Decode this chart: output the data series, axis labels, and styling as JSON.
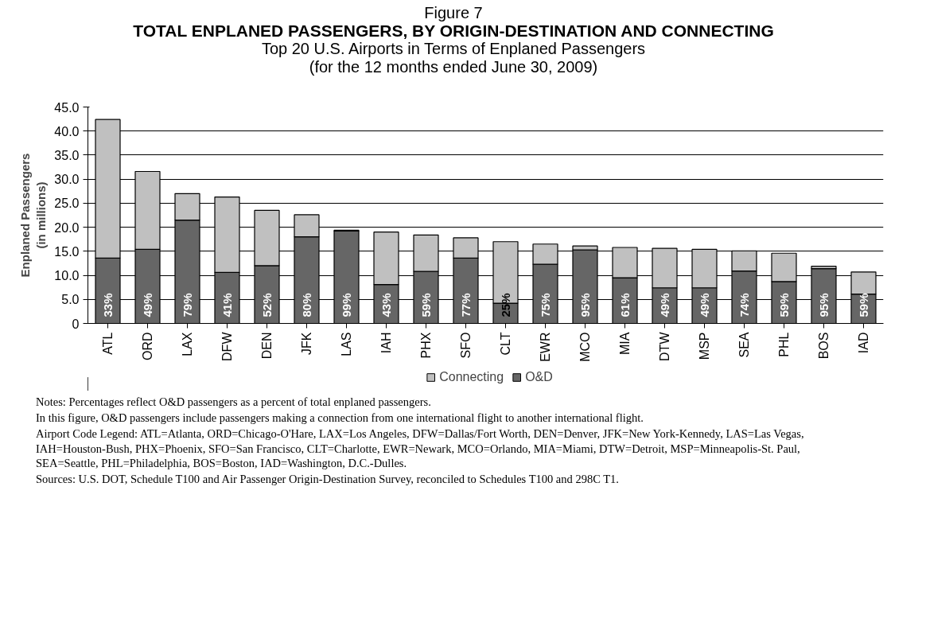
{
  "chart_data": {
    "type": "bar",
    "stacked": true,
    "title": "Figure 7\nTOTAL ENPLANED PASSENGERS, BY ORIGIN-DESTINATION AND CONNECTING",
    "subtitle": "Top 20 U.S. Airports in Terms of Enplaned Passengers\n(for the 12 months ended June 30, 2009)",
    "ylabel": "Enplaned Passengers\n(in millions)",
    "categories": [
      "ATL",
      "ORD",
      "LAX",
      "DFW",
      "DEN",
      "JFK",
      "LAS",
      "IAH",
      "PHX",
      "SFO",
      "CLT",
      "EWR",
      "MCO",
      "MIA",
      "DTW",
      "MSP",
      "SEA",
      "PHL",
      "BOS",
      "IAD"
    ],
    "series": [
      {
        "name": "O&D",
        "color": "#666666",
        "values": [
          13.6,
          15.4,
          21.5,
          10.6,
          12.0,
          18.0,
          19.2,
          8.1,
          10.8,
          13.6,
          4.2,
          12.3,
          15.3,
          9.5,
          7.4,
          7.4,
          10.9,
          8.7,
          11.4,
          6.1
        ]
      },
      {
        "name": "Connecting",
        "color": "#c0c0c0",
        "values": [
          28.8,
          16.2,
          5.5,
          15.7,
          11.5,
          4.6,
          0.2,
          10.9,
          7.6,
          4.2,
          12.8,
          4.2,
          0.8,
          6.3,
          8.2,
          8.0,
          4.2,
          5.9,
          0.5,
          4.6
        ]
      }
    ],
    "ylim": [
      0,
      45
    ],
    "yticks": [
      {
        "value": 0,
        "label": "0"
      },
      {
        "value": 5,
        "label": "5.0"
      },
      {
        "value": 10,
        "label": "10.0"
      },
      {
        "value": 15,
        "label": "15.0"
      },
      {
        "value": 20,
        "label": "20.0"
      },
      {
        "value": 25,
        "label": "25.0"
      },
      {
        "value": 30,
        "label": "30.0"
      },
      {
        "value": 35,
        "label": "35.0"
      },
      {
        "value": 40,
        "label": "40.0"
      },
      {
        "value": 45,
        "label": "45.0"
      }
    ],
    "grid": "y",
    "legend": "bottom",
    "annotations": [
      {
        "text": "33%",
        "x": "ATL",
        "y": 0
      },
      {
        "text": "49%",
        "x": "ORD",
        "y": 0
      },
      {
        "text": "79%",
        "x": "LAX",
        "y": 0
      },
      {
        "text": "41%",
        "x": "DFW",
        "y": 0
      },
      {
        "text": "52%",
        "x": "DEN",
        "y": 0
      },
      {
        "text": "80%",
        "x": "JFK",
        "y": 0
      },
      {
        "text": "99%",
        "x": "LAS",
        "y": 0
      },
      {
        "text": "43%",
        "x": "IAH",
        "y": 0
      },
      {
        "text": "59%",
        "x": "PHX",
        "y": 0
      },
      {
        "text": "77%",
        "x": "SFO",
        "y": 0
      },
      {
        "text": "25%",
        "x": "CLT",
        "y": 0
      },
      {
        "text": "75%",
        "x": "EWR",
        "y": 0
      },
      {
        "text": "95%",
        "x": "MCO",
        "y": 0
      },
      {
        "text": "61%",
        "x": "MIA",
        "y": 0
      },
      {
        "text": "49%",
        "x": "DTW",
        "y": 0
      },
      {
        "text": "49%",
        "x": "MSP",
        "y": 0
      },
      {
        "text": "74%",
        "x": "SEA",
        "y": 0
      },
      {
        "text": "59%",
        "x": "PHL",
        "y": 0
      },
      {
        "text": "95%",
        "x": "BOS",
        "y": 0
      },
      {
        "text": "59%",
        "x": "IAD",
        "y": 0
      },
      "Notes: Percentages reflect O&D passengers as a percent of total enplaned passengers.",
      "In this figure, O&D passengers include passengers making a connection from one international flight to another international flight.",
      "Airport Code Legend: ATL=Atlanta, ORD=Chicago-O'Hare, LAX=Los Angeles, DFW=Dallas/Fort Worth, DEN=Denver, JFK=New York-Kennedy, LAS=Las Vegas, IAH=Houston-Bush, PHX=Phoenix, SFO=San Francisco, CLT=Charlotte, EWR=Newark, MCO=Orlando, MIA=Miami, DTW=Detroit, MSP=Minneapolis-St. Paul, SEA=Seattle, PHL=Philadelphia, BOS=Boston, IAD=Washington, D.C.-Dulles.",
      "Sources: U.S. DOT, Schedule T100 and Air Passenger Origin-Destination Survey, reconciled to Schedules T100 and 298C T1."
    ]
  }
}
